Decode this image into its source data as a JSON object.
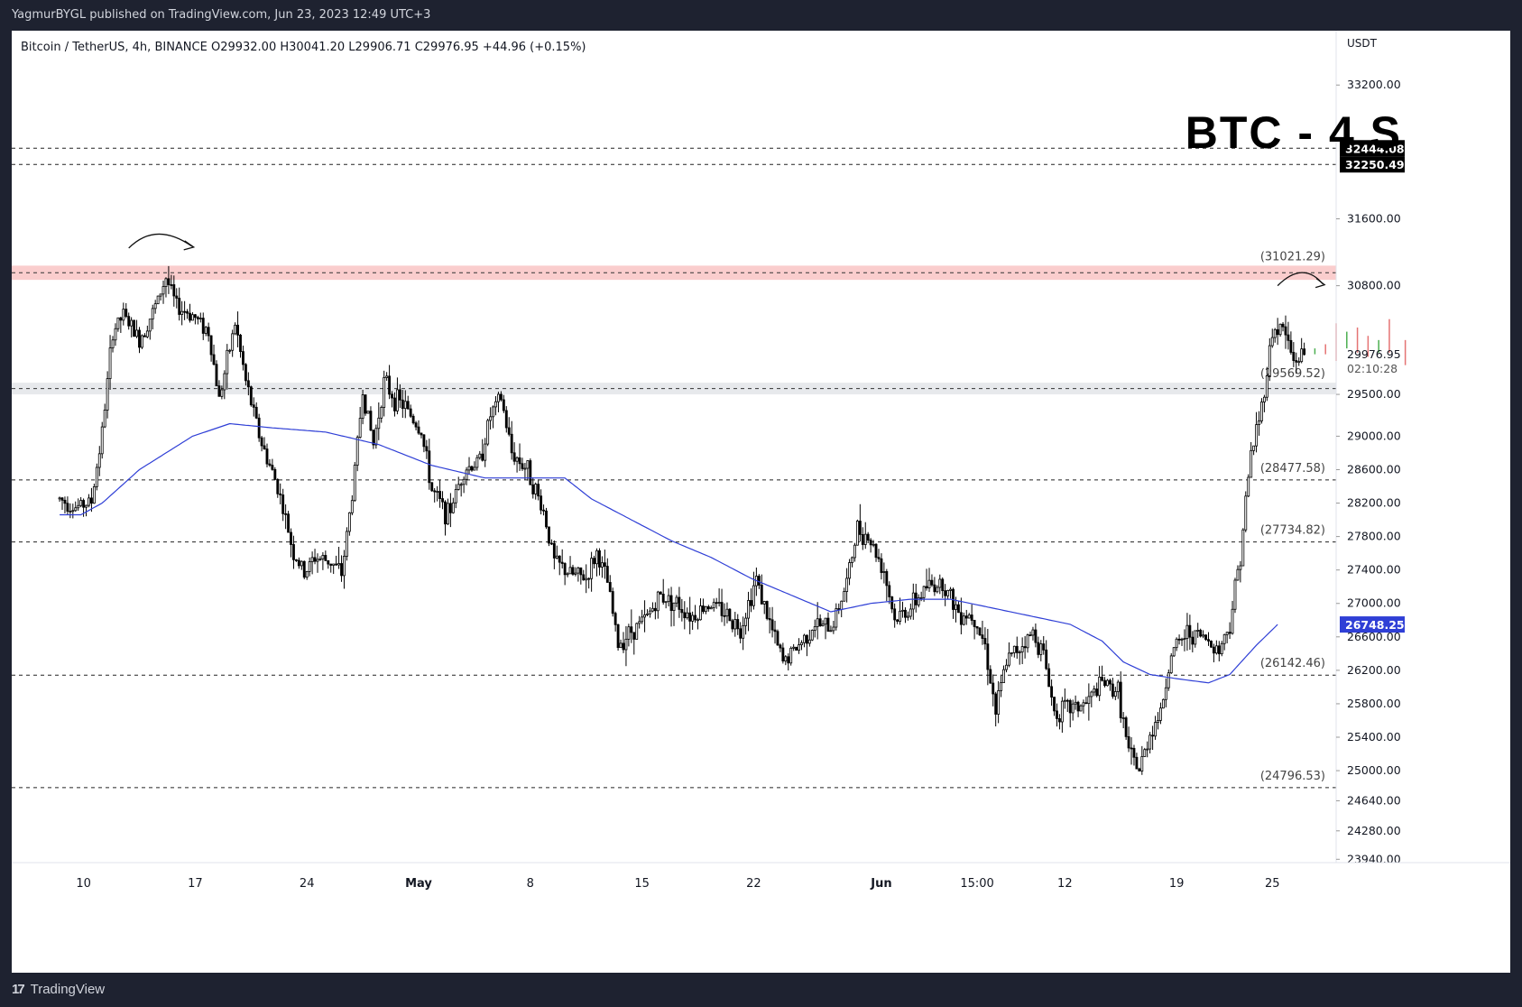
{
  "header": {
    "publisher_line": "YagmurBYGL published on TradingView.com, Jun 23, 2023 12:49 UTC+3"
  },
  "footer": {
    "brand": "TradingView",
    "brand_icon": "tradingview-logo-icon"
  },
  "chart_data": {
    "type": "candlestick",
    "symbol_line": "Bitcoin / TetherUS, 4h, BINANCE  O29932.00  H30041.20  L29906.71  C29976.95  +44.96 (+0.15%)",
    "watermark_title": "BTC - 4 S",
    "currency_label": "USDT",
    "ylim": [
      23900,
      33850
    ],
    "y_ticks": [
      "33200.00",
      "31600.00",
      "30800.00",
      "29500.00",
      "29000.00",
      "28600.00",
      "28200.00",
      "27800.00",
      "27400.00",
      "27000.00",
      "26600.00",
      "26200.00",
      "25800.00",
      "25400.00",
      "25000.00",
      "24640.00",
      "24280.00",
      "23940.00"
    ],
    "x_ticks": [
      {
        "label": "10",
        "t": 9
      },
      {
        "label": "17",
        "t": 51
      },
      {
        "label": "24",
        "t": 93
      },
      {
        "label": "May",
        "t": 135
      },
      {
        "label": "8",
        "t": 177
      },
      {
        "label": "15",
        "t": 219
      },
      {
        "label": "22",
        "t": 261
      },
      {
        "label": "Jun",
        "t": 309
      },
      {
        "label": "15:00",
        "t": 345
      },
      {
        "label": "12",
        "t": 378
      },
      {
        "label": "19",
        "t": 420
      },
      {
        "label": "25",
        "t": 456
      }
    ],
    "x_domain": [
      -18,
      480
    ],
    "current_price": "29976.95",
    "countdown": "02:10:28",
    "ma_value": "26748.25",
    "colors": {
      "up": "#000000",
      "down": "#000000",
      "ma": "#2f3fd6",
      "ghost_up": "#4caf50",
      "ghost_down": "#e57373",
      "resistance_zone": "#f8bcbc",
      "support_zone": "#dfe1e6"
    },
    "levels": [
      {
        "price": 32444.08,
        "label": "32444.08",
        "style": "box"
      },
      {
        "price": 32250.49,
        "label": "32250.49",
        "style": "box"
      },
      {
        "price": 28477.58,
        "label": "(28477.58)",
        "style": "dashed"
      },
      {
        "price": 27734.82,
        "label": "(27734.82)",
        "style": "dashed"
      },
      {
        "price": 26142.46,
        "label": "(26142.46)",
        "style": "dashed"
      },
      {
        "price": 24796.53,
        "label": "(24796.53)",
        "style": "dashed"
      }
    ],
    "zones": [
      {
        "low": 30870,
        "high": 31040,
        "label": "(31021.29)",
        "kind": "resistance"
      },
      {
        "low": 29500,
        "high": 29640,
        "label": "(29569.52)",
        "kind": "support"
      }
    ],
    "price_anchors": [
      [
        0,
        28250
      ],
      [
        6,
        28150
      ],
      [
        12,
        28220
      ],
      [
        16,
        29050
      ],
      [
        20,
        30250
      ],
      [
        24,
        30450
      ],
      [
        30,
        30150
      ],
      [
        36,
        30550
      ],
      [
        40,
        30900
      ],
      [
        44,
        30550
      ],
      [
        50,
        30450
      ],
      [
        56,
        30250
      ],
      [
        60,
        29450
      ],
      [
        66,
        30350
      ],
      [
        70,
        29650
      ],
      [
        76,
        28900
      ],
      [
        82,
        28400
      ],
      [
        88,
        27600
      ],
      [
        92,
        27350
      ],
      [
        96,
        27550
      ],
      [
        102,
        27500
      ],
      [
        106,
        27350
      ],
      [
        110,
        28300
      ],
      [
        114,
        29550
      ],
      [
        118,
        28900
      ],
      [
        122,
        29650
      ],
      [
        126,
        29450
      ],
      [
        130,
        29350
      ],
      [
        136,
        29050
      ],
      [
        140,
        28350
      ],
      [
        146,
        28050
      ],
      [
        152,
        28600
      ],
      [
        158,
        28700
      ],
      [
        162,
        29250
      ],
      [
        166,
        29450
      ],
      [
        170,
        28800
      ],
      [
        176,
        28600
      ],
      [
        182,
        28100
      ],
      [
        186,
        27500
      ],
      [
        192,
        27350
      ],
      [
        198,
        27300
      ],
      [
        202,
        27600
      ],
      [
        206,
        27250
      ],
      [
        210,
        26500
      ],
      [
        214,
        26650
      ],
      [
        220,
        26800
      ],
      [
        226,
        27100
      ],
      [
        232,
        27000
      ],
      [
        238,
        26850
      ],
      [
        244,
        27000
      ],
      [
        250,
        26900
      ],
      [
        256,
        26700
      ],
      [
        262,
        27300
      ],
      [
        266,
        26850
      ],
      [
        272,
        26300
      ],
      [
        278,
        26500
      ],
      [
        284,
        26750
      ],
      [
        290,
        26700
      ],
      [
        296,
        27250
      ],
      [
        300,
        27900
      ],
      [
        304,
        27800
      ],
      [
        310,
        27400
      ],
      [
        314,
        26800
      ],
      [
        320,
        26950
      ],
      [
        326,
        27200
      ],
      [
        332,
        27250
      ],
      [
        338,
        26900
      ],
      [
        344,
        26850
      ],
      [
        348,
        26500
      ],
      [
        352,
        25700
      ],
      [
        356,
        26300
      ],
      [
        360,
        26450
      ],
      [
        366,
        26650
      ],
      [
        370,
        26400
      ],
      [
        374,
        25700
      ],
      [
        380,
        25750
      ],
      [
        386,
        25800
      ],
      [
        392,
        26050
      ],
      [
        398,
        25950
      ],
      [
        402,
        25200
      ],
      [
        406,
        25000
      ],
      [
        410,
        25450
      ],
      [
        414,
        25700
      ],
      [
        418,
        26400
      ],
      [
        424,
        26650
      ],
      [
        430,
        26600
      ],
      [
        436,
        26450
      ],
      [
        440,
        26750
      ],
      [
        444,
        27600
      ],
      [
        448,
        28800
      ],
      [
        452,
        29350
      ],
      [
        456,
        30250
      ],
      [
        460,
        30300
      ],
      [
        464,
        29900
      ],
      [
        468,
        29977
      ]
    ],
    "ma_anchors": [
      [
        0,
        28060
      ],
      [
        8,
        28060
      ],
      [
        16,
        28200
      ],
      [
        30,
        28600
      ],
      [
        50,
        29000
      ],
      [
        64,
        29150
      ],
      [
        80,
        29100
      ],
      [
        100,
        29050
      ],
      [
        120,
        28900
      ],
      [
        140,
        28650
      ],
      [
        160,
        28500
      ],
      [
        176,
        28500
      ],
      [
        190,
        28500
      ],
      [
        200,
        28250
      ],
      [
        215,
        28000
      ],
      [
        230,
        27750
      ],
      [
        245,
        27550
      ],
      [
        260,
        27300
      ],
      [
        275,
        27100
      ],
      [
        290,
        26900
      ],
      [
        305,
        27000
      ],
      [
        320,
        27050
      ],
      [
        335,
        27050
      ],
      [
        350,
        26950
      ],
      [
        365,
        26850
      ],
      [
        380,
        26750
      ],
      [
        392,
        26550
      ],
      [
        400,
        26300
      ],
      [
        410,
        26150
      ],
      [
        420,
        26100
      ],
      [
        432,
        26050
      ],
      [
        440,
        26150
      ],
      [
        450,
        26500
      ],
      [
        458,
        26748
      ]
    ],
    "ghost_candles": [
      {
        "t": 472,
        "o": 30050,
        "c": 29980,
        "dir": "up"
      },
      {
        "t": 476,
        "o": 30100,
        "c": 29980,
        "dir": "down"
      },
      {
        "t": 480,
        "o": 30350,
        "c": 29900,
        "dir": "down"
      },
      {
        "t": 484,
        "o": 30050,
        "c": 30250,
        "dir": "up"
      },
      {
        "t": 488,
        "o": 30300,
        "c": 30000,
        "dir": "down"
      },
      {
        "t": 492,
        "o": 30200,
        "c": 29950,
        "dir": "down"
      },
      {
        "t": 496,
        "o": 30150,
        "c": 30000,
        "dir": "up"
      },
      {
        "t": 500,
        "o": 30400,
        "c": 30000,
        "dir": "down"
      },
      {
        "t": 506,
        "o": 30150,
        "c": 29850,
        "dir": "down"
      }
    ],
    "grid": false,
    "legend": "top-left"
  }
}
